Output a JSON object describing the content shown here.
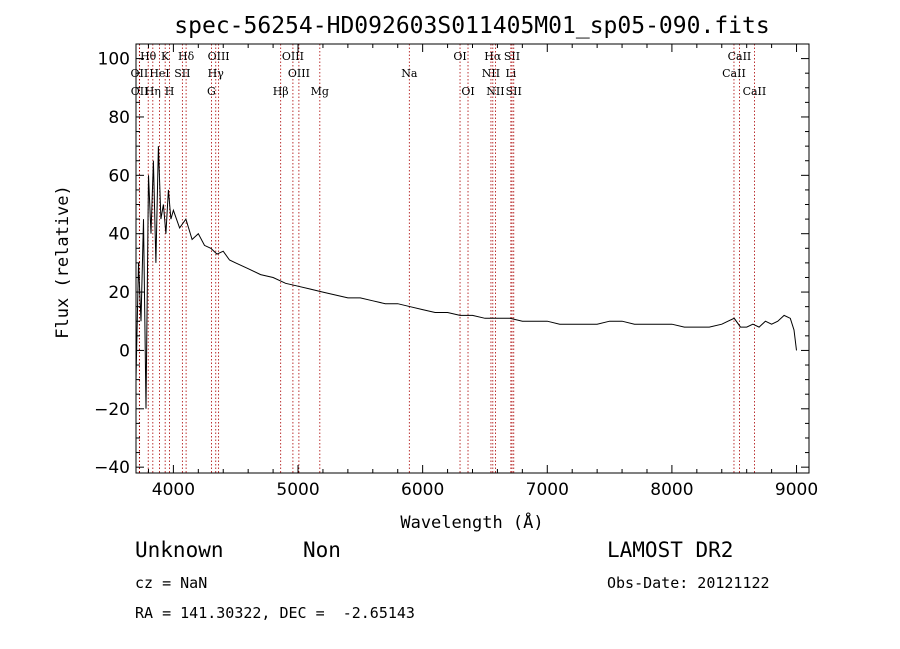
{
  "chart_data": {
    "type": "line",
    "title": "spec-56254-HD092603S011405M01_sp05-090.fits",
    "xlabel": "Wavelength (Å)",
    "ylabel": "Flux (relative)",
    "xlim": [
      3700,
      9100
    ],
    "ylim": [
      -42,
      105
    ],
    "xticks": [
      4000,
      5000,
      6000,
      7000,
      8000,
      9000
    ],
    "yticks": [
      -40,
      -20,
      0,
      20,
      40,
      60,
      80,
      100
    ],
    "xtick_labels": [
      "4000",
      "5000",
      "6000",
      "7000",
      "8000",
      "9000"
    ],
    "ytick_labels": [
      "−40",
      "−20",
      "0",
      "20",
      "40",
      "60",
      "80",
      "100"
    ],
    "grid": false,
    "series": [
      {
        "color": "#000000",
        "x": [
          3700,
          3720,
          3740,
          3760,
          3780,
          3800,
          3820,
          3840,
          3860,
          3880,
          3900,
          3920,
          3940,
          3960,
          3980,
          4000,
          4050,
          4100,
          4150,
          4200,
          4250,
          4300,
          4350,
          4400,
          4450,
          4500,
          4600,
          4700,
          4800,
          4900,
          5000,
          5100,
          5200,
          5300,
          5400,
          5500,
          5600,
          5700,
          5800,
          5900,
          6000,
          6100,
          6200,
          6300,
          6400,
          6500,
          6600,
          6700,
          6800,
          6900,
          7000,
          7100,
          7200,
          7300,
          7400,
          7500,
          7600,
          7700,
          7800,
          7900,
          8000,
          8100,
          8200,
          8300,
          8400,
          8450,
          8500,
          8550,
          8600,
          8650,
          8700,
          8750,
          8800,
          8850,
          8900,
          8950,
          8980,
          9000
        ],
        "y": [
          -10,
          30,
          10,
          45,
          -20,
          60,
          40,
          65,
          30,
          70,
          45,
          50,
          40,
          55,
          45,
          48,
          42,
          45,
          38,
          40,
          36,
          35,
          33,
          34,
          31,
          30,
          28,
          26,
          25,
          23,
          22,
          21,
          20,
          19,
          18,
          18,
          17,
          16,
          16,
          15,
          14,
          13,
          13,
          12,
          12,
          11,
          11,
          11,
          10,
          10,
          10,
          9,
          9,
          9,
          9,
          10,
          10,
          9,
          9,
          9,
          9,
          8,
          8,
          8,
          9,
          10,
          11,
          8,
          8,
          9,
          8,
          10,
          9,
          10,
          12,
          11,
          7,
          0
        ]
      }
    ],
    "lines": [
      {
        "label": "Hθ",
        "x": 3798,
        "row": 0
      },
      {
        "label": "K",
        "x": 3934,
        "row": 0
      },
      {
        "label": "Hδ",
        "x": 4102,
        "row": 0
      },
      {
        "label": "OIII",
        "x": 4363,
        "row": 0
      },
      {
        "label": "OIII",
        "x": 4959,
        "row": 0
      },
      {
        "label": "OI",
        "x": 6300,
        "row": 0
      },
      {
        "label": "Hα",
        "x": 6563,
        "row": 0
      },
      {
        "label": "SII",
        "x": 6717,
        "row": 0
      },
      {
        "label": "CaII",
        "x": 8542,
        "row": 0
      },
      {
        "label": "OII",
        "x": 3727,
        "row": 1
      },
      {
        "label": "HeI",
        "x": 3889,
        "row": 1
      },
      {
        "label": "SII",
        "x": 4072,
        "row": 1
      },
      {
        "label": "Hγ",
        "x": 4340,
        "row": 1
      },
      {
        "label": "OIII",
        "x": 5007,
        "row": 1
      },
      {
        "label": "Na",
        "x": 5893,
        "row": 1
      },
      {
        "label": "NII",
        "x": 6548,
        "row": 1
      },
      {
        "label": "Li",
        "x": 6708,
        "row": 1
      },
      {
        "label": "CaII",
        "x": 8498,
        "row": 1
      },
      {
        "label": "OII",
        "x": 3729,
        "row": 2
      },
      {
        "label": "Hη",
        "x": 3835,
        "row": 2
      },
      {
        "label": "H",
        "x": 3969,
        "row": 2
      },
      {
        "label": "G",
        "x": 4305,
        "row": 2
      },
      {
        "label": "Hβ",
        "x": 4861,
        "row": 2
      },
      {
        "label": "Mg",
        "x": 5175,
        "row": 2
      },
      {
        "label": "OI",
        "x": 6364,
        "row": 2
      },
      {
        "label": "NII",
        "x": 6584,
        "row": 2
      },
      {
        "label": "SII",
        "x": 6731,
        "row": 2
      },
      {
        "label": "CaII",
        "x": 8662,
        "row": 2
      }
    ]
  },
  "info": {
    "object_class": "Unknown",
    "subclass": "Non",
    "survey": "LAMOST DR2",
    "cz": "cz = NaN",
    "obs_date": "Obs-Date: 20121122",
    "coords": "RA = 141.30322, DEC =  -2.65143"
  }
}
